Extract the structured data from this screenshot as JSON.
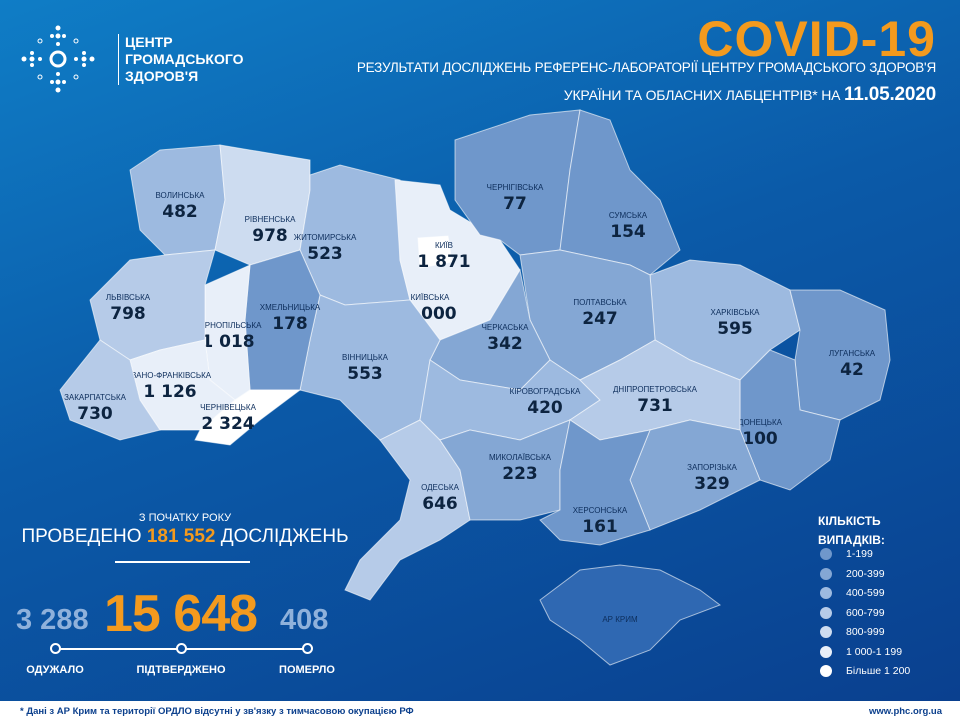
{
  "logo": {
    "lines": [
      "ЦЕНТР",
      "ГРОМАДСЬКОГО",
      "ЗДОРОВ'Я"
    ]
  },
  "header": {
    "title": "COVID-19",
    "subtitle_line1": "РЕЗУЛЬТАТИ ДОСЛІДЖЕНЬ РЕФЕРЕНС-ЛАБОРАТОРІЇ ЦЕНТРУ ГРОМАДСЬКОГО ЗДОРОВ'Я",
    "subtitle_line2": "УКРАЇНИ ТА ОБЛАСНИХ ЛАБЦЕНТРІВ* НА",
    "date": "11.05.2020"
  },
  "regions": [
    {
      "name": "ВОЛИНСЬКА",
      "cases": "482"
    },
    {
      "name": "РІВНЕНСЬКА",
      "cases": "978"
    },
    {
      "name": "ЖИТОМИРСЬКА",
      "cases": "523"
    },
    {
      "name": "КИЇВСЬКА",
      "cases": "1 000"
    },
    {
      "name": "КИЇВ",
      "cases": "1 871"
    },
    {
      "name": "ЧЕРНІГІВСЬКА",
      "cases": "77"
    },
    {
      "name": "СУМСЬКА",
      "cases": "154"
    },
    {
      "name": "ХАРКІВСЬКА",
      "cases": "595"
    },
    {
      "name": "ЛУГАНСЬКА",
      "cases": "42"
    },
    {
      "name": "ДОНЕЦЬКА",
      "cases": "100"
    },
    {
      "name": "ПОЛТАВСЬКА",
      "cases": "247"
    },
    {
      "name": "ЧЕРКАСЬКА",
      "cases": "342"
    },
    {
      "name": "ВІННИЦЬКА",
      "cases": "553"
    },
    {
      "name": "ХМЕЛЬНИЦЬКА",
      "cases": "178"
    },
    {
      "name": "ТЕРНОПІЛЬСЬКА",
      "cases": "1 018"
    },
    {
      "name": "ЛЬВІВСЬКА",
      "cases": "798"
    },
    {
      "name": "ІВАНО-ФРАНКІВСЬКА",
      "cases": "1 126"
    },
    {
      "name": "ЗАКАРПАТСЬКА",
      "cases": "730"
    },
    {
      "name": "ЧЕРНІВЕЦЬКА",
      "cases": "2 324"
    },
    {
      "name": "ОДЕСЬКА",
      "cases": "646"
    },
    {
      "name": "КІРОВОГРАДСЬКА",
      "cases": "420"
    },
    {
      "name": "МИКОЛАЇВСЬКА",
      "cases": "223"
    },
    {
      "name": "ДНІПРОПЕТРОВСЬКА",
      "cases": "731"
    },
    {
      "name": "ЗАПОРІЗЬКА",
      "cases": "329"
    },
    {
      "name": "ХЕРСОНСЬКА",
      "cases": "161"
    },
    {
      "name": "АР КРИМ",
      "cases": ""
    }
  ],
  "stats": {
    "since_label": "З ПОЧАТКУ РОКУ",
    "tests_prefix": "ПРОВЕДЕНО",
    "tests_value": "181 552",
    "tests_suffix": "ДОСЛІДЖЕНЬ",
    "recovered": "3 288",
    "confirmed": "15 648",
    "died": "408",
    "recovered_label": "ОДУЖАЛО",
    "confirmed_label": "ПІДТВЕРДЖЕНО",
    "died_label": "ПОМЕРЛО"
  },
  "legend": {
    "title_line1": "КІЛЬКІСТЬ",
    "title_line2": "ВИПАДКІВ:",
    "items": [
      {
        "label": "1-199",
        "color": "#6f97cb"
      },
      {
        "label": "200-399",
        "color": "#84a7d4"
      },
      {
        "label": "400-599",
        "color": "#9dbae0"
      },
      {
        "label": "600-799",
        "color": "#b6cbe8"
      },
      {
        "label": "800-999",
        "color": "#cddcf0"
      },
      {
        "label": "1 000-1 199",
        "color": "#e8eff9"
      },
      {
        "label": "Більше 1 200",
        "color": "#ffffff"
      }
    ]
  },
  "crimea_color": "#2f68b2",
  "footer": {
    "note": "* Дані з АР Крим та території ОРДЛО відсутні у зв'язку з тимчасовою окупацією РФ",
    "site": "www.phc.org.ua"
  }
}
